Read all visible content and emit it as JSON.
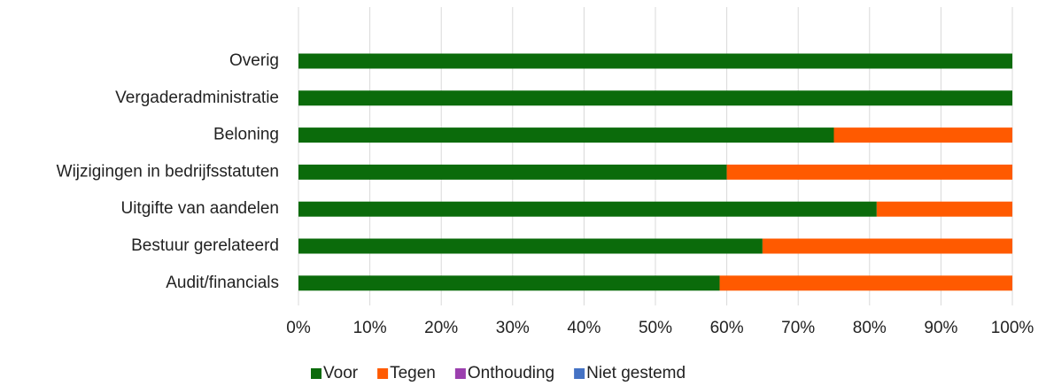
{
  "chart_data": {
    "type": "stacked-bar-horizontal",
    "categories": [
      "Overig",
      "Vergaderadministratie",
      "Beloning",
      "Wijzigingen in bedrijfsstatuten",
      "Uitgifte van aandelen",
      "Bestuur gerelateerd",
      "Audit/financials"
    ],
    "series": [
      {
        "name": "Voor",
        "color": "#0b6b0b",
        "values": [
          100,
          100,
          75,
          60,
          81,
          65,
          59
        ]
      },
      {
        "name": "Tegen",
        "color": "#ff5a00",
        "values": [
          0,
          0,
          25,
          40,
          19,
          35,
          41
        ]
      },
      {
        "name": "Onthouding",
        "color": "#9b3fae",
        "values": [
          0,
          0,
          0,
          0,
          0,
          0,
          0
        ]
      },
      {
        "name": "Niet gestemd",
        "color": "#4472c4",
        "values": [
          0,
          0,
          0,
          0,
          0,
          0,
          0
        ]
      }
    ],
    "xlim": [
      0,
      100
    ],
    "xticks": [
      {
        "value": 0,
        "label": "0%"
      },
      {
        "value": 10,
        "label": "10%"
      },
      {
        "value": 20,
        "label": "20%"
      },
      {
        "value": 30,
        "label": "30%"
      },
      {
        "value": 40,
        "label": "40%"
      },
      {
        "value": 50,
        "label": "50%"
      },
      {
        "value": 60,
        "label": "60%"
      },
      {
        "value": 70,
        "label": "70%"
      },
      {
        "value": 80,
        "label": "80%"
      },
      {
        "value": 90,
        "label": "90%"
      },
      {
        "value": 100,
        "label": "100%"
      }
    ],
    "grid": true,
    "legend": "bottom"
  }
}
